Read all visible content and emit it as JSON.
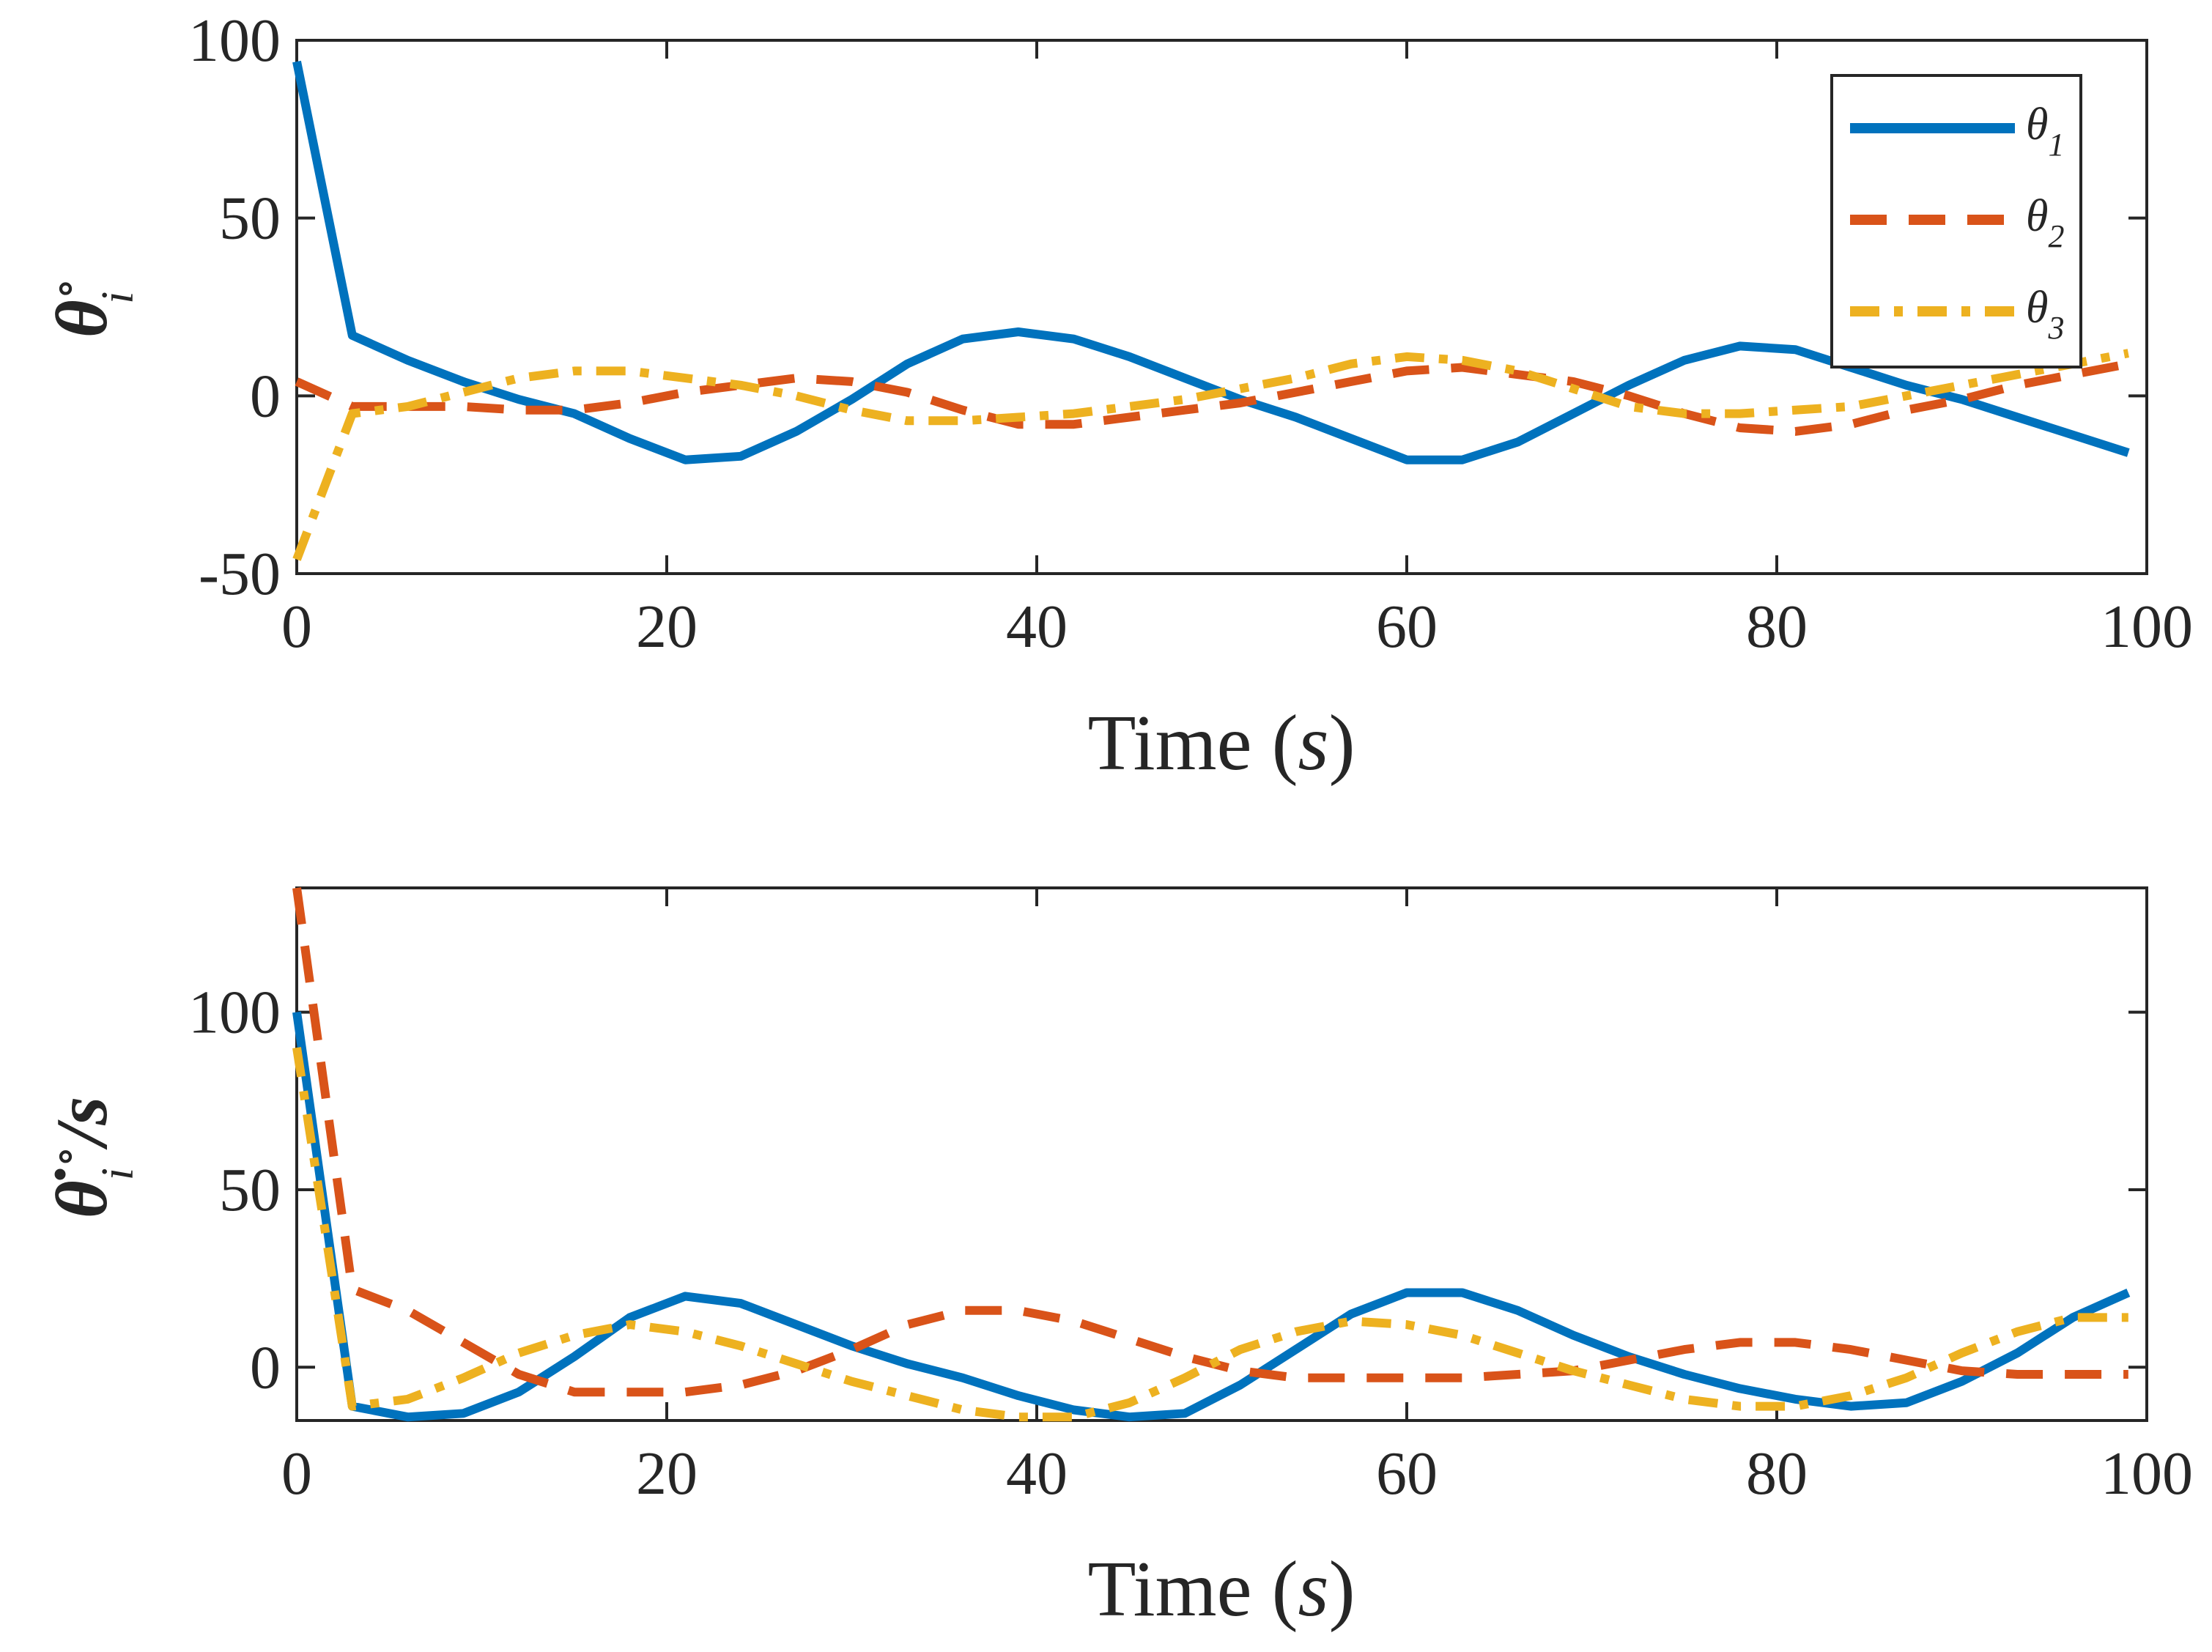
{
  "chart_data": [
    {
      "type": "line",
      "panel": "top",
      "xlabel": {
        "main": "Time (",
        "var": "s",
        "close": ")"
      },
      "ylabel": {
        "main": "θ",
        "sup": "∘",
        "sub": "i"
      },
      "xlim": [
        0,
        100
      ],
      "ylim": [
        -50,
        100
      ],
      "xticks": [
        0,
        20,
        40,
        60,
        80,
        100
      ],
      "yticks": [
        -50,
        0,
        50,
        100
      ],
      "xtick_labels": [
        "0",
        "20",
        "40",
        "60",
        "80",
        "100"
      ],
      "ytick_labels": [
        "-50",
        "0",
        "50",
        "100"
      ],
      "legend_position": "top-right",
      "series": [
        {
          "name": "θ",
          "sub": "1",
          "color": "#0072BD",
          "style": "solid",
          "x": [
            0,
            3,
            6,
            9,
            12,
            15,
            18,
            21,
            24,
            27,
            30,
            33,
            36,
            39,
            42,
            45,
            48,
            51,
            54,
            57,
            60,
            63,
            66,
            69,
            72,
            75,
            78,
            81,
            84,
            87,
            90,
            93,
            96,
            99
          ],
          "y": [
            94,
            17,
            10,
            4,
            -1,
            -5,
            -12,
            -18,
            -17,
            -10,
            -1,
            9,
            16,
            18,
            16,
            11,
            5,
            -1,
            -6,
            -12,
            -18,
            -18,
            -13,
            -5,
            3,
            10,
            14,
            13,
            8,
            3,
            -1,
            -6,
            -11,
            -16
          ]
        },
        {
          "name": "θ",
          "sub": "2",
          "color": "#D95319",
          "style": "dashed",
          "x": [
            0,
            3,
            6,
            9,
            12,
            15,
            18,
            21,
            24,
            27,
            30,
            33,
            36,
            39,
            42,
            45,
            48,
            51,
            54,
            57,
            60,
            63,
            66,
            69,
            72,
            75,
            78,
            81,
            84,
            87,
            90,
            93,
            96,
            99
          ],
          "y": [
            4,
            -3,
            -3,
            -3,
            -4,
            -4,
            -2,
            1,
            3,
            5,
            4,
            1,
            -4,
            -8,
            -8,
            -6,
            -4,
            -2,
            1,
            4,
            7,
            8,
            6,
            4,
            0,
            -5,
            -9,
            -10,
            -8,
            -4,
            -1,
            3,
            6,
            9
          ]
        },
        {
          "name": "θ",
          "sub": "3",
          "color": "#EDB120",
          "style": "dashdot",
          "x": [
            0,
            3,
            6,
            9,
            12,
            15,
            18,
            21,
            24,
            27,
            30,
            33,
            36,
            39,
            42,
            45,
            48,
            51,
            54,
            57,
            60,
            63,
            66,
            69,
            72,
            75,
            78,
            81,
            84,
            87,
            90,
            93,
            96,
            99
          ],
          "y": [
            -46,
            -5,
            -3,
            1,
            5,
            7,
            7,
            5,
            3,
            0,
            -4,
            -7,
            -7,
            -6,
            -5,
            -3,
            -1,
            2,
            5,
            9,
            11,
            10,
            7,
            2,
            -3,
            -5,
            -5,
            -4,
            -3,
            0,
            3,
            6,
            9,
            12
          ]
        }
      ]
    },
    {
      "type": "line",
      "panel": "bottom",
      "xlabel": {
        "main": "Time (",
        "var": "s",
        "close": ")"
      },
      "ylabel": {
        "main": "θ̇",
        "sub": "i",
        "sup": "∘",
        "tail": "/s"
      },
      "xlim": [
        0,
        100
      ],
      "ylim": [
        -15,
        135
      ],
      "xticks": [
        0,
        20,
        40,
        60,
        80,
        100
      ],
      "yticks": [
        0,
        50,
        100
      ],
      "xtick_labels": [
        "0",
        "20",
        "40",
        "60",
        "80",
        "100"
      ],
      "ytick_labels": [
        "0",
        "50",
        "100"
      ],
      "series": [
        {
          "name": "θ1",
          "color": "#0072BD",
          "style": "solid",
          "x": [
            0,
            3,
            6,
            9,
            12,
            15,
            18,
            21,
            24,
            27,
            30,
            33,
            36,
            39,
            42,
            45,
            48,
            51,
            54,
            57,
            60,
            63,
            66,
            69,
            72,
            75,
            78,
            81,
            84,
            87,
            90,
            93,
            96,
            99
          ],
          "y": [
            100,
            -11,
            -14,
            -13,
            -7,
            3,
            14,
            20,
            18,
            12,
            6,
            1,
            -3,
            -8,
            -12,
            -14,
            -13,
            -5,
            5,
            15,
            21,
            21,
            16,
            9,
            3,
            -2,
            -6,
            -9,
            -11,
            -10,
            -4,
            4,
            14,
            21
          ]
        },
        {
          "name": "θ2",
          "color": "#D95319",
          "style": "dashed",
          "x": [
            0,
            3,
            6,
            9,
            12,
            15,
            18,
            21,
            24,
            27,
            30,
            33,
            36,
            39,
            42,
            45,
            48,
            51,
            54,
            57,
            60,
            63,
            66,
            69,
            72,
            75,
            78,
            81,
            84,
            87,
            90,
            93,
            96,
            99
          ],
          "y": [
            135,
            22,
            16,
            7,
            -2,
            -7,
            -7,
            -7,
            -5,
            -1,
            5,
            12,
            16,
            16,
            13,
            8,
            3,
            -1,
            -3,
            -3,
            -3,
            -3,
            -2,
            -1,
            2,
            5,
            7,
            7,
            5,
            2,
            -1,
            -2,
            -2,
            -2
          ]
        },
        {
          "name": "θ3",
          "color": "#EDB120",
          "style": "dashdot",
          "x": [
            0,
            3,
            6,
            9,
            12,
            15,
            18,
            21,
            24,
            27,
            30,
            33,
            36,
            39,
            42,
            45,
            48,
            51,
            54,
            57,
            60,
            63,
            66,
            69,
            72,
            75,
            78,
            81,
            84,
            87,
            90,
            93,
            96,
            99
          ],
          "y": [
            90,
            -11,
            -9,
            -3,
            4,
            9,
            12,
            10,
            6,
            1,
            -4,
            -8,
            -12,
            -14,
            -14,
            -10,
            -3,
            5,
            10,
            13,
            12,
            9,
            4,
            -1,
            -5,
            -9,
            -11,
            -11,
            -8,
            -3,
            4,
            10,
            14,
            14
          ]
        }
      ]
    }
  ]
}
